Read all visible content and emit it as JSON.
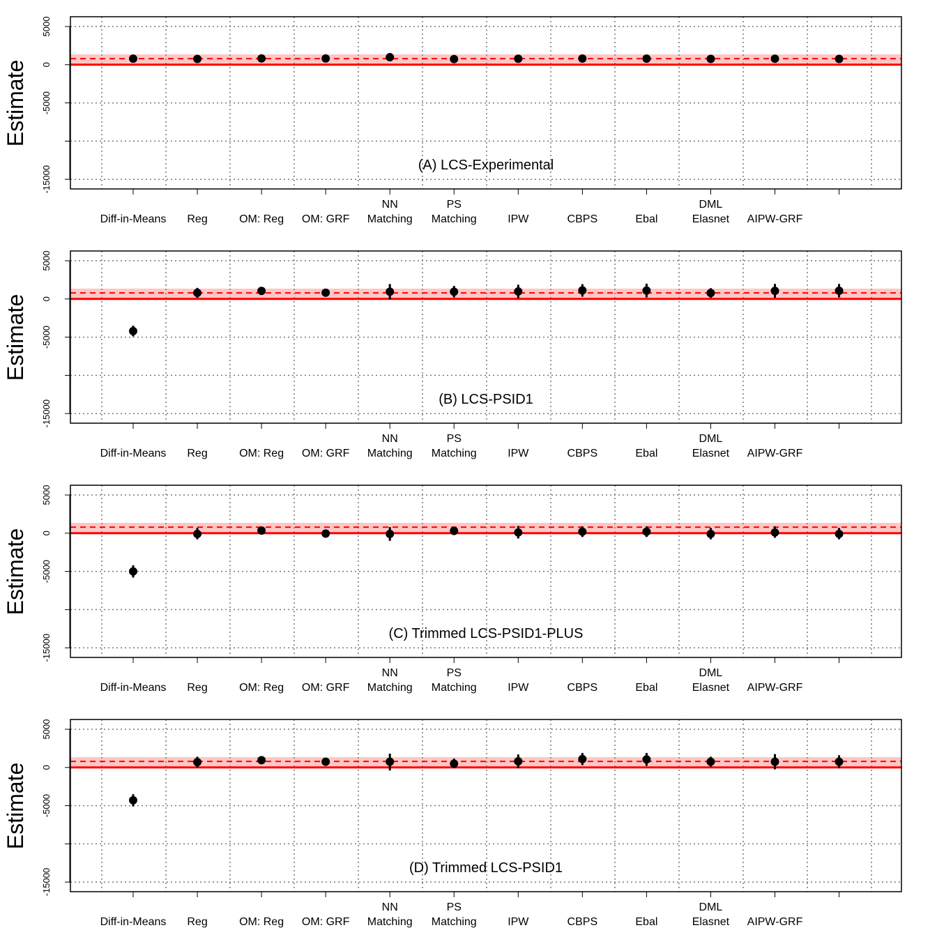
{
  "chart_data": [
    {
      "type": "scatter",
      "title": "(A) LCS-Experimental",
      "ylabel": "Estimate",
      "categories": [
        [
          "Diff-in-Means"
        ],
        [
          "Reg"
        ],
        [
          "OM: Reg"
        ],
        [
          "OM: GRF"
        ],
        [
          "NN",
          "Matching"
        ],
        [
          "PS",
          "Matching"
        ],
        [
          "IPW"
        ],
        [
          "CBPS"
        ],
        [
          "Ebal"
        ],
        [
          "DML",
          "Elasnet"
        ],
        [
          "AIPW-GRF"
        ],
        []
      ],
      "yticks": [
        5000,
        0,
        -5000,
        -10000,
        -15000
      ],
      "ytick_labels": [
        "5000",
        "0",
        "-5000",
        "",
        "-15000"
      ],
      "ylim": [
        -16000,
        6000
      ],
      "grid": true,
      "reference": {
        "zero_line": 0,
        "benchmark": 794,
        "band": [
          0,
          1350
        ],
        "color": "#ff0000",
        "band_color": "#ffc6c6"
      },
      "series": [
        {
          "estimates": [
            794,
            760,
            820,
            810,
            980,
            740,
            780,
            800,
            790,
            760,
            780,
            760
          ],
          "ci_low": [
            450,
            420,
            620,
            640,
            540,
            400,
            380,
            420,
            430,
            400,
            380,
            420
          ],
          "ci_high": [
            1140,
            1100,
            1020,
            980,
            1420,
            1080,
            1180,
            1180,
            1150,
            1120,
            1180,
            1100
          ]
        }
      ]
    },
    {
      "type": "scatter",
      "title": "(B) LCS-PSID1",
      "ylabel": "Estimate",
      "categories": [
        [
          "Diff-in-Means"
        ],
        [
          "Reg"
        ],
        [
          "OM: Reg"
        ],
        [
          "OM: GRF"
        ],
        [
          "NN",
          "Matching"
        ],
        [
          "PS",
          "Matching"
        ],
        [
          "IPW"
        ],
        [
          "CBPS"
        ],
        [
          "Ebal"
        ],
        [
          "DML",
          "Elasnet"
        ],
        [
          "AIPW-GRF"
        ],
        []
      ],
      "yticks": [
        5000,
        0,
        -5000,
        -10000,
        -15000
      ],
      "ytick_labels": [
        "5000",
        "0",
        "-5000",
        "",
        "-15000"
      ],
      "ylim": [
        -16000,
        6000
      ],
      "grid": true,
      "reference": {
        "zero_line": 0,
        "benchmark": 794,
        "band": [
          0,
          1350
        ],
        "color": "#ff0000",
        "band_color": "#ffc6c6"
      },
      "series": [
        {
          "estimates": [
            -4200,
            800,
            1050,
            820,
            950,
            950,
            980,
            1120,
            1100,
            780,
            1060,
            1080
          ],
          "ci_low": [
            -4900,
            150,
            700,
            480,
            -50,
            200,
            100,
            300,
            200,
            150,
            150,
            200
          ],
          "ci_high": [
            -3500,
            1450,
            1400,
            1160,
            1950,
            1700,
            1860,
            1940,
            2000,
            1410,
            1970,
            1960
          ]
        }
      ]
    },
    {
      "type": "scatter",
      "title": "(C) Trimmed LCS-PSID1-PLUS",
      "ylabel": "Estimate",
      "categories": [
        [
          "Diff-in-Means"
        ],
        [
          "Reg"
        ],
        [
          "OM: Reg"
        ],
        [
          "OM: GRF"
        ],
        [
          "NN",
          "Matching"
        ],
        [
          "PS",
          "Matching"
        ],
        [
          "IPW"
        ],
        [
          "CBPS"
        ],
        [
          "Ebal"
        ],
        [
          "DML",
          "Elasnet"
        ],
        [
          "AIPW-GRF"
        ],
        []
      ],
      "yticks": [
        5000,
        0,
        -5000,
        -10000,
        -15000
      ],
      "ytick_labels": [
        "5000",
        "0",
        "-5000",
        "",
        "-15000"
      ],
      "ylim": [
        -16000,
        6000
      ],
      "grid": true,
      "reference": {
        "zero_line": 0,
        "benchmark": 794,
        "band": [
          0,
          1350
        ],
        "color": "#ff0000",
        "band_color": "#ffc6c6"
      },
      "series": [
        {
          "estimates": [
            -5000,
            -100,
            350,
            -50,
            -100,
            300,
            100,
            200,
            200,
            -100,
            100,
            -100
          ],
          "ci_low": [
            -5800,
            -800,
            100,
            -300,
            -1000,
            -250,
            -700,
            -500,
            -500,
            -800,
            -600,
            -800
          ],
          "ci_high": [
            -4200,
            700,
            600,
            200,
            800,
            850,
            950,
            900,
            900,
            700,
            900,
            700
          ]
        }
      ]
    },
    {
      "type": "scatter",
      "title": "(D) Trimmed LCS-PSID1",
      "ylabel": "Estimate",
      "categories": [
        [
          "Diff-in-Means"
        ],
        [
          "Reg"
        ],
        [
          "OM: Reg"
        ],
        [
          "OM: GRF"
        ],
        [
          "NN",
          "Matching"
        ],
        [
          "PS",
          "Matching"
        ],
        [
          "IPW"
        ],
        [
          "CBPS"
        ],
        [
          "Ebal"
        ],
        [
          "DML",
          "Elasnet"
        ],
        [
          "AIPW-GRF"
        ],
        []
      ],
      "yticks": [
        5000,
        0,
        -5000,
        -10000,
        -15000
      ],
      "ytick_labels": [
        "5000",
        "0",
        "-5000",
        "",
        "-15000"
      ],
      "ylim": [
        -16000,
        6000
      ],
      "grid": true,
      "reference": {
        "zero_line": 0,
        "benchmark": 794,
        "band": [
          0,
          1350
        ],
        "color": "#ff0000",
        "band_color": "#ffc6c6"
      },
      "series": [
        {
          "estimates": [
            -4300,
            700,
            950,
            750,
            750,
            500,
            800,
            1100,
            1050,
            750,
            750,
            750
          ],
          "ci_low": [
            -5100,
            0,
            550,
            400,
            -400,
            -100,
            -100,
            300,
            200,
            100,
            -250,
            -100
          ],
          "ci_high": [
            -3500,
            1400,
            1350,
            1100,
            1800,
            1150,
            1700,
            1900,
            1900,
            1400,
            1750,
            1600
          ]
        }
      ]
    }
  ]
}
